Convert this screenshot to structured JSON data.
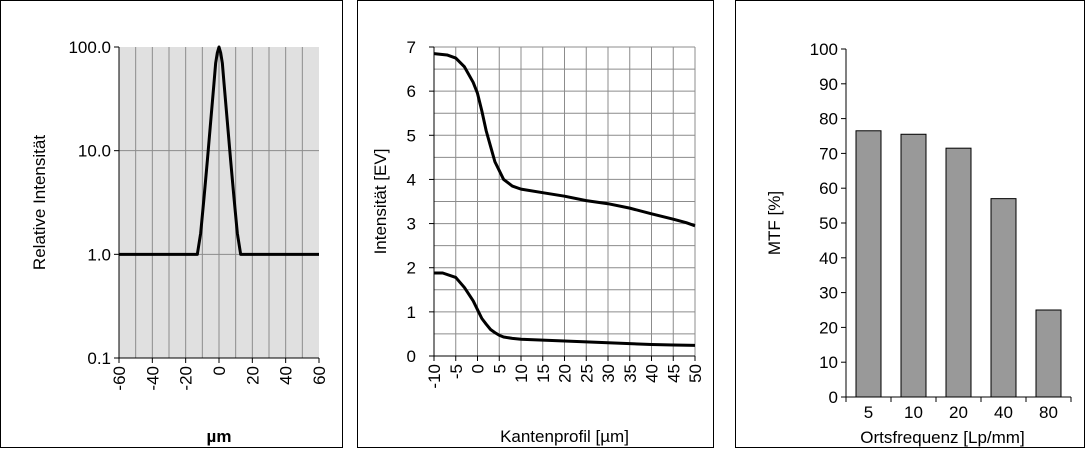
{
  "chart_data": [
    {
      "type": "line",
      "scale": "log",
      "xlabel": "µm",
      "ylabel": "Relative Intensität",
      "x_ticks": [
        "-60",
        "-40",
        "-20",
        "0",
        "20",
        "40",
        "60"
      ],
      "y_ticks": [
        "0.1",
        "1.0",
        "10.0",
        "100.0"
      ],
      "xlim": [
        -60,
        60
      ],
      "ylim": [
        0.1,
        100
      ],
      "grid": true,
      "series": [
        {
          "x": [
            -60,
            -13,
            -11,
            -9,
            -7,
            -5,
            -3,
            -2,
            -1,
            0,
            1,
            2,
            3,
            5,
            7,
            9,
            11,
            13,
            60
          ],
          "y": [
            1.0,
            1.0,
            1.6,
            3.5,
            8,
            19,
            45,
            70,
            88,
            100,
            88,
            70,
            45,
            19,
            8,
            3.5,
            1.6,
            1.0,
            1.0
          ]
        }
      ]
    },
    {
      "type": "line",
      "xlabel": "Kantenprofil [µm]",
      "ylabel": "Intensität [EV]",
      "x_ticks": [
        "-10",
        "-5",
        "0",
        "5",
        "10",
        "15",
        "20",
        "25",
        "30",
        "35",
        "40",
        "45",
        "50"
      ],
      "y_ticks": [
        "0",
        "1",
        "2",
        "3",
        "4",
        "5",
        "6",
        "7"
      ],
      "xlim": [
        -10,
        50
      ],
      "ylim": [
        0,
        7
      ],
      "grid": true,
      "series": [
        {
          "x": [
            -10,
            -7,
            -5,
            -3,
            -1,
            0,
            1,
            2,
            3,
            4,
            5,
            6,
            8,
            10,
            15,
            20,
            25,
            30,
            35,
            40,
            45,
            48,
            50
          ],
          "y": [
            6.85,
            6.82,
            6.75,
            6.55,
            6.2,
            5.95,
            5.55,
            5.1,
            4.75,
            4.4,
            4.2,
            4.0,
            3.85,
            3.78,
            3.7,
            3.62,
            3.52,
            3.45,
            3.35,
            3.22,
            3.1,
            3.02,
            2.95
          ]
        },
        {
          "x": [
            -10,
            -8,
            -5,
            -3,
            -1,
            0,
            1,
            2,
            3,
            4,
            5,
            6,
            8,
            10,
            15,
            20,
            25,
            30,
            35,
            40,
            45,
            50
          ],
          "y": [
            1.88,
            1.88,
            1.78,
            1.55,
            1.25,
            1.05,
            0.85,
            0.72,
            0.6,
            0.53,
            0.47,
            0.43,
            0.4,
            0.38,
            0.36,
            0.34,
            0.32,
            0.3,
            0.28,
            0.26,
            0.25,
            0.24
          ]
        }
      ]
    },
    {
      "type": "bar",
      "xlabel": "Ortsfrequenz [Lp/mm]",
      "ylabel": "MTF [%]",
      "categories": [
        "5",
        "10",
        "20",
        "40",
        "80"
      ],
      "values": [
        76.5,
        75.5,
        71.5,
        57,
        25
      ],
      "y_ticks": [
        "0",
        "10",
        "20",
        "30",
        "40",
        "50",
        "60",
        "70",
        "80",
        "90",
        "100"
      ],
      "ylim": [
        0,
        100
      ],
      "grid": false,
      "bar_color": "#999999"
    }
  ]
}
